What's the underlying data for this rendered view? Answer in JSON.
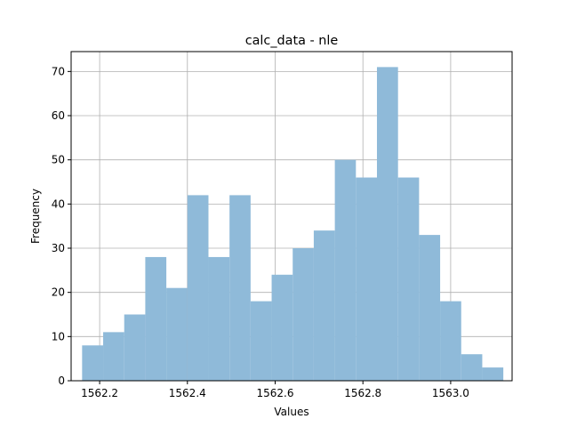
{
  "chart_data": {
    "type": "bar",
    "subtype": "histogram",
    "title": "calc_data - nle",
    "xlabel": "Values",
    "ylabel": "Frequency",
    "xlim": [
      1562.135,
      1563.14
    ],
    "ylim": [
      0,
      74.5
    ],
    "grid": true,
    "bar_color": "#8fbad9",
    "bins": [
      {
        "x0": 1562.16,
        "x1": 1562.208,
        "count": 8
      },
      {
        "x0": 1562.208,
        "x1": 1562.256,
        "count": 11
      },
      {
        "x0": 1562.256,
        "x1": 1562.304,
        "count": 15
      },
      {
        "x0": 1562.304,
        "x1": 1562.352,
        "count": 28
      },
      {
        "x0": 1562.352,
        "x1": 1562.4,
        "count": 21
      },
      {
        "x0": 1562.4,
        "x1": 1562.448,
        "count": 42
      },
      {
        "x0": 1562.448,
        "x1": 1562.496,
        "count": 28
      },
      {
        "x0": 1562.496,
        "x1": 1562.544,
        "count": 42
      },
      {
        "x0": 1562.544,
        "x1": 1562.592,
        "count": 18
      },
      {
        "x0": 1562.592,
        "x1": 1562.64,
        "count": 24
      },
      {
        "x0": 1562.64,
        "x1": 1562.688,
        "count": 30
      },
      {
        "x0": 1562.688,
        "x1": 1562.736,
        "count": 34
      },
      {
        "x0": 1562.736,
        "x1": 1562.784,
        "count": 50
      },
      {
        "x0": 1562.784,
        "x1": 1562.832,
        "count": 46
      },
      {
        "x0": 1562.832,
        "x1": 1562.88,
        "count": 71
      },
      {
        "x0": 1562.88,
        "x1": 1562.928,
        "count": 46
      },
      {
        "x0": 1562.928,
        "x1": 1562.976,
        "count": 33
      },
      {
        "x0": 1562.976,
        "x1": 1563.024,
        "count": 18
      },
      {
        "x0": 1563.024,
        "x1": 1563.072,
        "count": 6
      },
      {
        "x0": 1563.072,
        "x1": 1563.12,
        "count": 3
      }
    ],
    "x_ticks": [
      {
        "value": 1562.2,
        "label": "1562.2"
      },
      {
        "value": 1562.4,
        "label": "1562.4"
      },
      {
        "value": 1562.6,
        "label": "1562.6"
      },
      {
        "value": 1562.8,
        "label": "1562.8"
      },
      {
        "value": 1563.0,
        "label": "1563.0"
      }
    ],
    "y_ticks": [
      {
        "value": 0,
        "label": "0"
      },
      {
        "value": 10,
        "label": "10"
      },
      {
        "value": 20,
        "label": "20"
      },
      {
        "value": 30,
        "label": "30"
      },
      {
        "value": 40,
        "label": "40"
      },
      {
        "value": 50,
        "label": "50"
      },
      {
        "value": 60,
        "label": "60"
      },
      {
        "value": 70,
        "label": "70"
      }
    ]
  }
}
